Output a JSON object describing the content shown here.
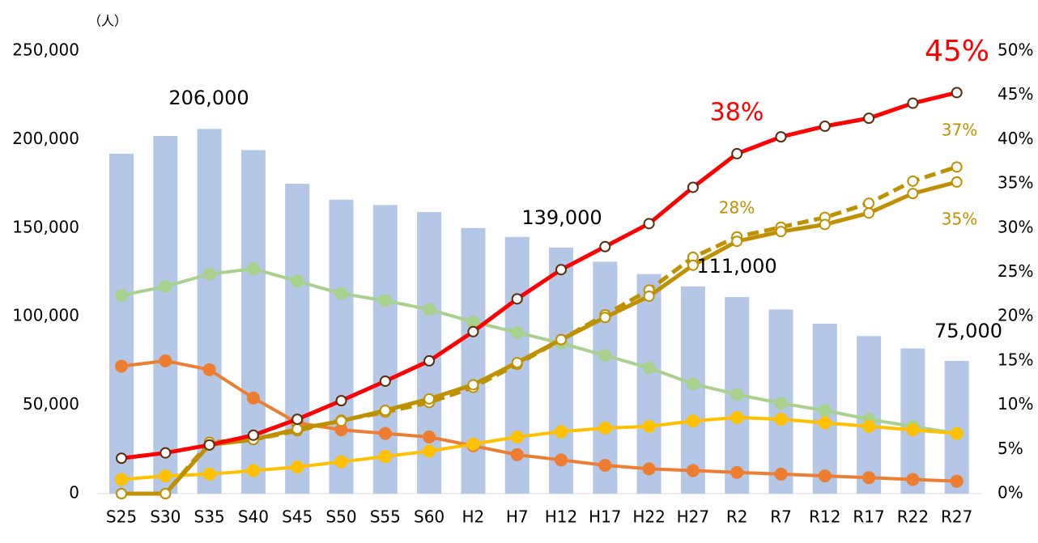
{
  "chart_data": {
    "type": "bar",
    "categories": [
      "S25",
      "S30",
      "S35",
      "S40",
      "S45",
      "S50",
      "S55",
      "S60",
      "H2",
      "H7",
      "H12",
      "H17",
      "H22",
      "H27",
      "R2",
      "R7",
      "R12",
      "R17",
      "R22",
      "R27"
    ],
    "values": [
      192000,
      202000,
      206000,
      194000,
      175000,
      166000,
      163000,
      159000,
      150000,
      145000,
      139000,
      131000,
      124000,
      117000,
      111000,
      104000,
      96000,
      89000,
      82000,
      75000
    ],
    "color": "#b4c7e7",
    "series": [
      {
        "color": "#a9d18e",
        "values": [
          112000,
          117000,
          124000,
          127000,
          120000,
          113000,
          109000,
          104000,
          97000,
          91000,
          85000,
          78000,
          71000,
          62000,
          56000,
          51000,
          47000,
          42000,
          38000,
          34000
        ]
      },
      {
        "color": "#ed7d31",
        "values": [
          72000,
          75000,
          70000,
          54000,
          40000,
          36000,
          34000,
          32000,
          27000,
          22000,
          19000,
          16000,
          14000,
          13000,
          12000,
          11000,
          10000,
          9000,
          8000,
          7000
        ]
      },
      {
        "color": "#ffc000",
        "values": [
          8000,
          10000,
          11000,
          13000,
          15000,
          18000,
          21000,
          24000,
          28000,
          32000,
          35000,
          37000,
          38000,
          41000,
          43000,
          42000,
          40000,
          38000,
          36000,
          34000
        ]
      },
      {
        "color": "#bf9000",
        "axis": "y2",
        "marker": "hollow",
        "dash": true,
        "values": [
          0,
          0,
          5.8,
          6.1,
          7.1,
          8.3,
          9.2,
          10.3,
          12.0,
          14.6,
          17.4,
          20.2,
          23.0,
          26.7,
          29.0,
          30.1,
          31.2,
          32.8,
          35.3,
          36.9
        ]
      },
      {
        "color": "#bf9000",
        "axis": "y2",
        "marker": "hollow",
        "values": [
          0,
          0,
          5.5,
          6.1,
          7.3,
          8.2,
          9.4,
          10.7,
          12.3,
          14.8,
          17.4,
          19.9,
          22.3,
          25.8,
          28.5,
          29.6,
          30.4,
          31.7,
          33.9,
          35.2
        ]
      },
      {
        "color": "#ff0000",
        "axis": "y2",
        "marker": "hollow",
        "values": [
          4.0,
          4.6,
          5.5,
          6.6,
          8.4,
          10.5,
          12.7,
          15.0,
          18.3,
          22.0,
          25.3,
          27.9,
          30.5,
          34.6,
          38.4,
          40.3,
          41.5,
          42.4,
          44.1,
          45.3
        ]
      }
    ],
    "ylim": [
      0,
      250000
    ],
    "yticks": [
      0,
      {
        "value": 50000,
        "label": "50,000"
      },
      {
        "value": 100000,
        "label": "100,000"
      },
      {
        "value": 150000,
        "label": "150,000"
      },
      {
        "value": 200000,
        "label": "200,000"
      },
      {
        "value": 250000,
        "label": "250,000"
      }
    ],
    "y2lim": [
      0,
      50
    ],
    "y2ticks": [
      {
        "value": 0,
        "label": "0%"
      },
      {
        "value": 5,
        "label": "5%"
      },
      {
        "value": 10,
        "label": "10%"
      },
      {
        "value": 15,
        "label": "15%"
      },
      {
        "value": 20,
        "label": "20%"
      },
      {
        "value": 25,
        "label": "25%"
      },
      {
        "value": 30,
        "label": "30%"
      },
      {
        "value": 35,
        "label": "35%"
      },
      {
        "value": 40,
        "label": "40%"
      },
      {
        "value": 45,
        "label": "45%"
      },
      {
        "value": 50,
        "label": "50%"
      }
    ],
    "y_label": "（人）",
    "annotations": [
      "206,000",
      "139,000",
      "111,000",
      "75,000",
      "45%",
      "38%",
      "37%",
      "28%",
      "35%"
    ]
  }
}
